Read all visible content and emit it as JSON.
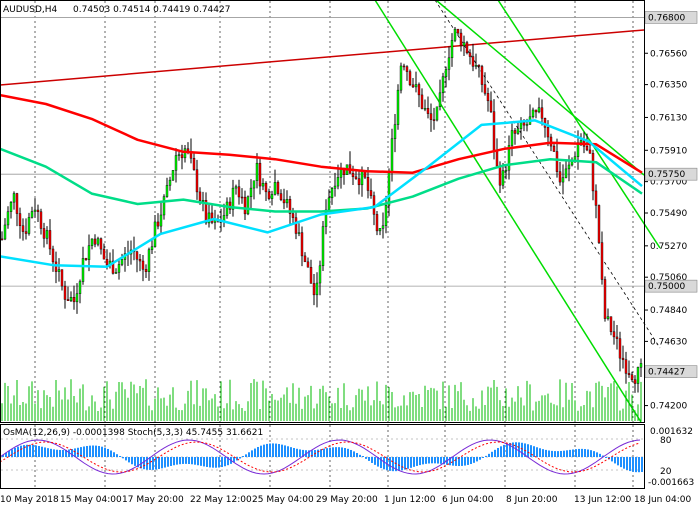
{
  "chart_data": {
    "type": "candlestick",
    "symbol": "AUDUSD,H4",
    "header_quote": "0.74503 0.74514 0.74419 0.74427",
    "ohlc": {
      "open": 0.74503,
      "high": 0.74514,
      "low": 0.74419,
      "close": 0.74427
    },
    "price_axis_ticks": [
      0.7656,
      0.7635,
      0.7613,
      0.7591,
      0.757,
      0.7549,
      0.7527,
      0.7506,
      0.7484,
      0.7463,
      0.742
    ],
    "price_labels": [
      {
        "value": 0.768,
        "text": "0.76800"
      },
      {
        "value": 0.7575,
        "text": "0.75750"
      },
      {
        "value": 0.75,
        "text": "0.75000"
      },
      {
        "value": 0.74427,
        "text": "0.74427"
      }
    ],
    "ylim": [
      0.7409,
      0.7691
    ],
    "x_ticks": [
      "10 May 2018",
      "15 May 04:00",
      "17 May 20:00",
      "22 May 12:00",
      "25 May 04:00",
      "29 May 20:00",
      "1 Jun 12:00",
      "6 Jun 04:00",
      "8 Jun 20:00",
      "13 Jun 12:00",
      "18 Jun 04:00"
    ],
    "moving_averages": [
      {
        "color": "#ff0000",
        "values": [
          0.7628,
          0.7622,
          0.7612,
          0.7598,
          0.759,
          0.7588,
          0.7585,
          0.758,
          0.7577,
          0.7576,
          0.7585,
          0.7592,
          0.7596,
          0.7595,
          0.7576
        ]
      },
      {
        "color": "#00dd88",
        "values": [
          0.7592,
          0.758,
          0.7562,
          0.7555,
          0.7558,
          0.7553,
          0.755,
          0.755,
          0.7552,
          0.756,
          0.7572,
          0.7581,
          0.7585,
          0.7583,
          0.7562
        ]
      },
      {
        "color": "#00e0ff",
        "values": [
          0.752,
          0.7514,
          0.7513,
          0.7535,
          0.7545,
          0.7536,
          0.7548,
          0.7553,
          0.758,
          0.7608,
          0.7611,
          0.7597,
          0.7567
        ]
      }
    ],
    "trend_lines": [
      {
        "color": "#00dd00",
        "points": [
          [
            0,
            0.7693
          ],
          [
            29,
            0.7411
          ]
        ]
      },
      {
        "color": "#00dd00",
        "points": [
          [
            0,
            0.7693
          ],
          [
            31,
            0.7532
          ]
        ]
      },
      {
        "color": "#cc0000",
        "points": [
          [
            0,
            0.7636
          ],
          [
            37,
            0.7686
          ]
        ]
      },
      {
        "color": "#000000",
        "dash": true,
        "points": [
          [
            0,
            0.7689
          ],
          [
            32,
            0.7463
          ]
        ]
      }
    ],
    "indicator_title": "OsMA(12,26,9) -0.0001398 Stoch(5,3,3) 45.7455 31.6621",
    "indicator_axis": [
      "0.001632",
      "80",
      "20",
      "-0.001663"
    ],
    "colors": {
      "bull": "#00ff00",
      "bear": "#ff0000",
      "histogram": "#1e90ff",
      "grid": "#000000"
    }
  }
}
